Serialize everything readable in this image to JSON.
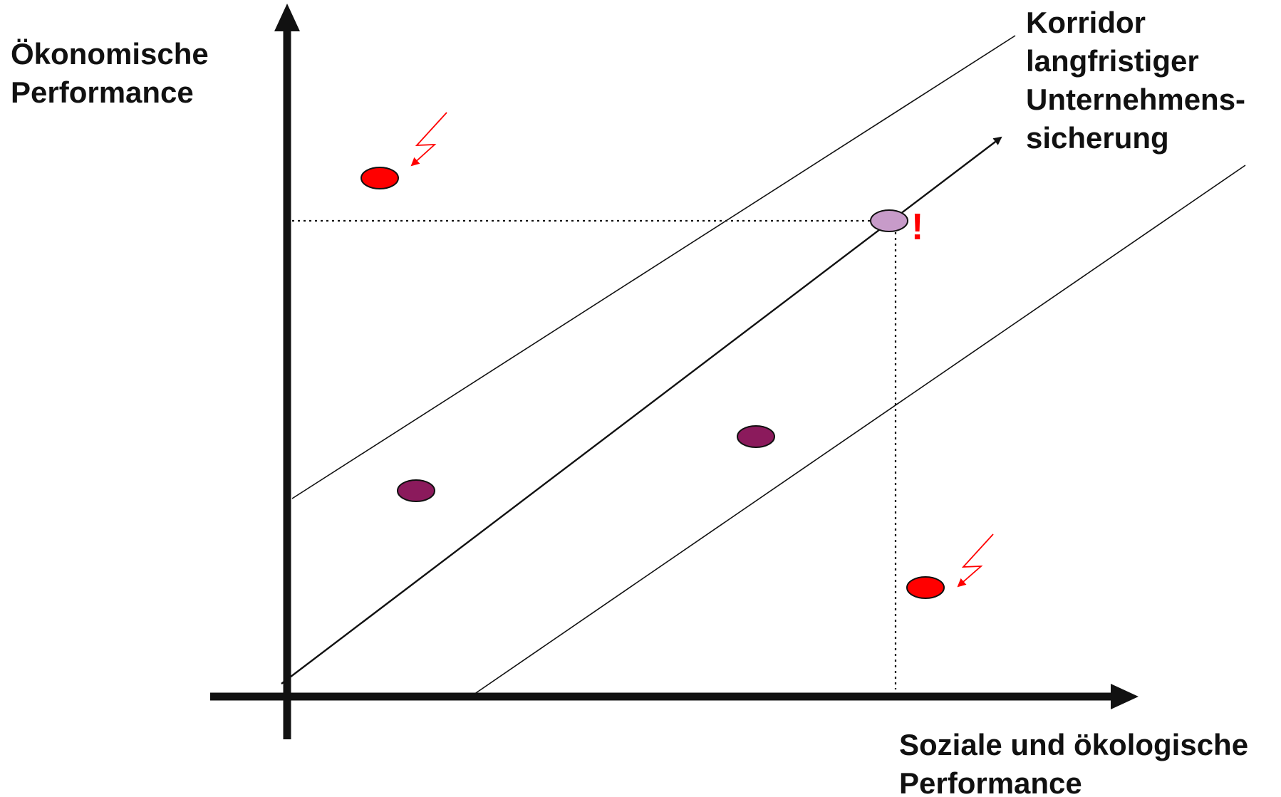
{
  "y_axis_label": {
    "line1": "Ökonomische",
    "line2": "Performance"
  },
  "x_axis_label": {
    "line1": "Soziale und ökologische",
    "line2": "Performance"
  },
  "corridor_label": {
    "line1": "Korridor",
    "line2": "langfristiger",
    "line3": "Unternehmens-",
    "line4": "sicherung"
  },
  "marker": {
    "text": "!",
    "color": "#ff0000"
  },
  "colors": {
    "axis": "#111111",
    "risk_point": "#ff0000",
    "stable_point": "#8b1a5c",
    "target_point": "#c79bc9",
    "lightning": "#ff0000"
  }
}
